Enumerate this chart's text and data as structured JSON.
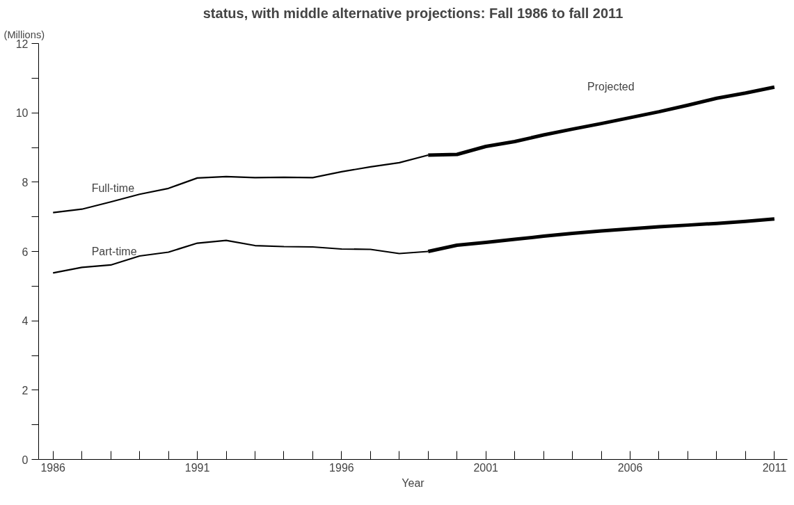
{
  "chart_data": {
    "type": "line",
    "title": "status, with middle alternative projections: Fall 1986 to fall 2011",
    "ylabel": "(Millions)",
    "xlabel": "Year",
    "xlim": [
      1985.5,
      2011.45
    ],
    "ylim": [
      0,
      12
    ],
    "xticks": [
      1986,
      {
        "value": 1987,
        "label": null
      },
      {
        "value": 1988,
        "label": null
      },
      {
        "value": 1989,
        "label": null
      },
      {
        "value": 1990,
        "label": null
      },
      1991,
      {
        "value": 1992,
        "label": null
      },
      {
        "value": 1993,
        "label": null
      },
      {
        "value": 1994,
        "label": null
      },
      {
        "value": 1995,
        "label": null
      },
      1996,
      {
        "value": 1997,
        "label": null
      },
      {
        "value": 1998,
        "label": null
      },
      {
        "value": 1999,
        "label": null
      },
      {
        "value": 2000,
        "label": null
      },
      2001,
      {
        "value": 2002,
        "label": null
      },
      {
        "value": 2003,
        "label": null
      },
      {
        "value": 2004,
        "label": null
      },
      {
        "value": 2005,
        "label": null
      },
      2006,
      {
        "value": 2007,
        "label": null
      },
      {
        "value": 2008,
        "label": null
      },
      {
        "value": 2009,
        "label": null
      },
      {
        "value": 2010,
        "label": null
      },
      2011
    ],
    "yticks": [
      0,
      {
        "value": 1,
        "label": null
      },
      2,
      {
        "value": 3,
        "label": null
      },
      4,
      {
        "value": 5,
        "label": null
      },
      6,
      {
        "value": 7,
        "label": null
      },
      8,
      {
        "value": 9,
        "label": null
      },
      10,
      {
        "value": 11,
        "label": null
      },
      12
    ],
    "grid": false,
    "line_style": "solid",
    "annotations": [
      "Full-time",
      "Part-time",
      "Projected"
    ],
    "series": [
      {
        "color": "#000000",
        "x": [
          1986,
          1987,
          1988,
          1989,
          1990,
          1991,
          1992,
          1993,
          1994,
          1995,
          1996,
          1997,
          1998,
          1999
        ],
        "values": [
          7.12,
          7.22,
          7.43,
          7.65,
          7.82,
          8.12,
          8.16,
          8.13,
          8.14,
          8.13,
          8.3,
          8.44,
          8.56,
          8.78
        ]
      },
      {
        "color": "#000000",
        "x": [
          1999,
          2000,
          2001,
          2002,
          2003,
          2004,
          2005,
          2006,
          2007,
          2008,
          2009,
          2010,
          2011
        ],
        "values": [
          8.78,
          8.8,
          9.03,
          9.17,
          9.36,
          9.53,
          9.69,
          9.86,
          10.03,
          10.22,
          10.42,
          10.57,
          10.74
        ]
      },
      {
        "color": "#000000",
        "x": [
          1986,
          1987,
          1988,
          1989,
          1990,
          1991,
          1992,
          1993,
          1994,
          1995,
          1996,
          1997,
          1998,
          1999
        ],
        "values": [
          5.38,
          5.54,
          5.61,
          5.87,
          5.98,
          6.24,
          6.32,
          6.17,
          6.14,
          6.13,
          6.07,
          6.06,
          5.94,
          6.0
        ]
      },
      {
        "color": "#000000",
        "x": [
          1999,
          2000,
          2001,
          2002,
          2003,
          2004,
          2005,
          2006,
          2007,
          2008,
          2009,
          2010,
          2011
        ],
        "values": [
          6.0,
          6.18,
          6.26,
          6.35,
          6.44,
          6.52,
          6.59,
          6.65,
          6.71,
          6.76,
          6.81,
          6.87,
          6.94
        ]
      }
    ]
  }
}
